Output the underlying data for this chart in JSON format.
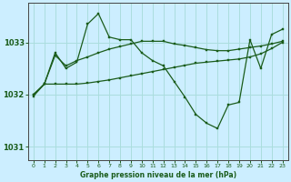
{
  "title": "Graphe pression niveau de la mer (hPa)",
  "bg_color": "#cceeff",
  "grid_color": "#aadddd",
  "line_color": "#1a5c1a",
  "ylim": [
    1030.75,
    1033.75
  ],
  "yticks": [
    1031,
    1032,
    1033
  ],
  "xlim": [
    -0.5,
    23.5
  ],
  "xticks": [
    0,
    1,
    2,
    3,
    4,
    5,
    6,
    7,
    8,
    9,
    10,
    11,
    12,
    13,
    14,
    15,
    16,
    17,
    18,
    19,
    20,
    21,
    22,
    23
  ],
  "line1_x": [
    0,
    1,
    2,
    3,
    4,
    5,
    6,
    7,
    8,
    9,
    10,
    11,
    12,
    13,
    14,
    15,
    16,
    17,
    18,
    19,
    20,
    21,
    22,
    23
  ],
  "line1_y": [
    1032.0,
    1032.2,
    1032.8,
    1032.5,
    1032.62,
    1033.35,
    1033.55,
    1033.1,
    1033.05,
    1033.05,
    1032.8,
    1032.65,
    1032.55,
    1032.25,
    1031.95,
    1031.62,
    1031.45,
    1031.35,
    1031.8,
    1031.85,
    1033.05,
    1032.5,
    1033.15,
    1033.25
  ],
  "line2_x": [
    0,
    1,
    2,
    3,
    4,
    5,
    6,
    7,
    8,
    9,
    10,
    11,
    12,
    13,
    14,
    15,
    16,
    17,
    18,
    19,
    20,
    21,
    22,
    23
  ],
  "line2_y": [
    1032.0,
    1032.2,
    1032.2,
    1032.2,
    1032.2,
    1032.22,
    1032.25,
    1032.28,
    1032.32,
    1032.36,
    1032.4,
    1032.44,
    1032.48,
    1032.52,
    1032.56,
    1032.6,
    1032.62,
    1032.64,
    1032.66,
    1032.68,
    1032.72,
    1032.78,
    1032.88,
    1033.0
  ],
  "line3_x": [
    0,
    1,
    2,
    3,
    4,
    5,
    6,
    7,
    8,
    9,
    10,
    11,
    12,
    13,
    14,
    15,
    16,
    17,
    18,
    19,
    20,
    21,
    22,
    23
  ],
  "line3_y": [
    1031.97,
    1032.2,
    1032.75,
    1032.55,
    1032.65,
    1032.72,
    1032.8,
    1032.87,
    1032.92,
    1032.97,
    1033.02,
    1033.02,
    1033.02,
    1032.97,
    1032.94,
    1032.9,
    1032.86,
    1032.84,
    1032.84,
    1032.87,
    1032.9,
    1032.93,
    1032.97,
    1033.02
  ]
}
